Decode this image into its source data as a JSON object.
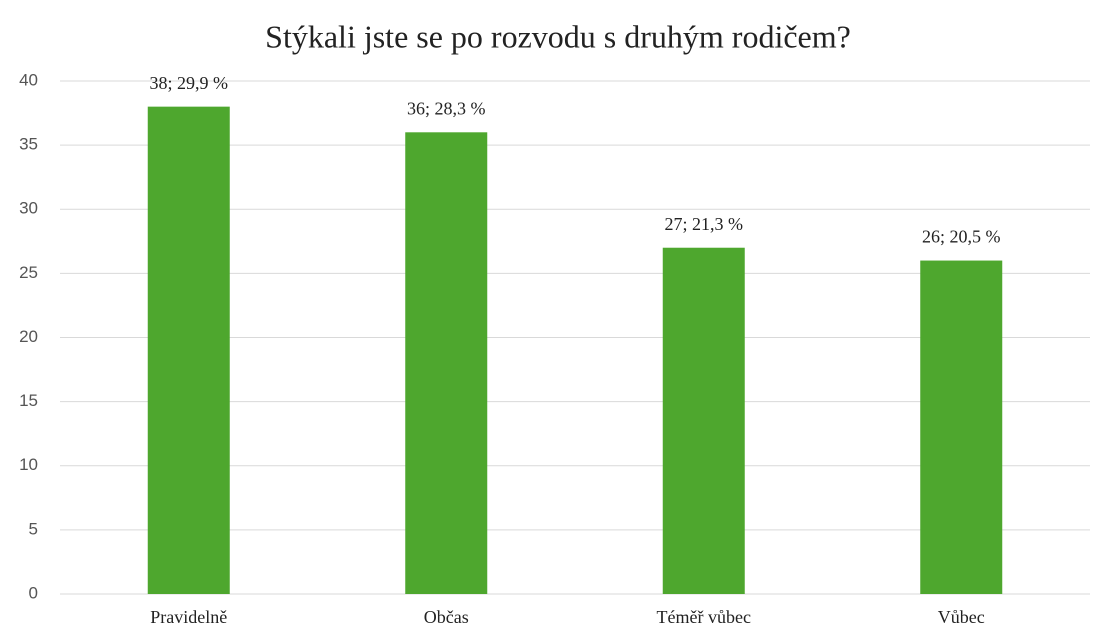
{
  "chart_data": {
    "type": "bar",
    "title": "Stýkali jste se po rozvodu s druhým rodičem?",
    "categories": [
      "Pravidelně",
      "Občas",
      "Téměř vůbec",
      "Vůbec"
    ],
    "values": [
      38,
      36,
      27,
      26
    ],
    "value_labels": [
      "38; 29,9 %",
      "36; 28,3 %",
      "27; 21,3 %",
      "26; 20,5 %"
    ],
    "color": "#4ea72e",
    "ylim": [
      0,
      40
    ],
    "yticks": [
      0,
      5,
      10,
      15,
      20,
      25,
      30,
      35,
      40
    ],
    "grid": true
  }
}
